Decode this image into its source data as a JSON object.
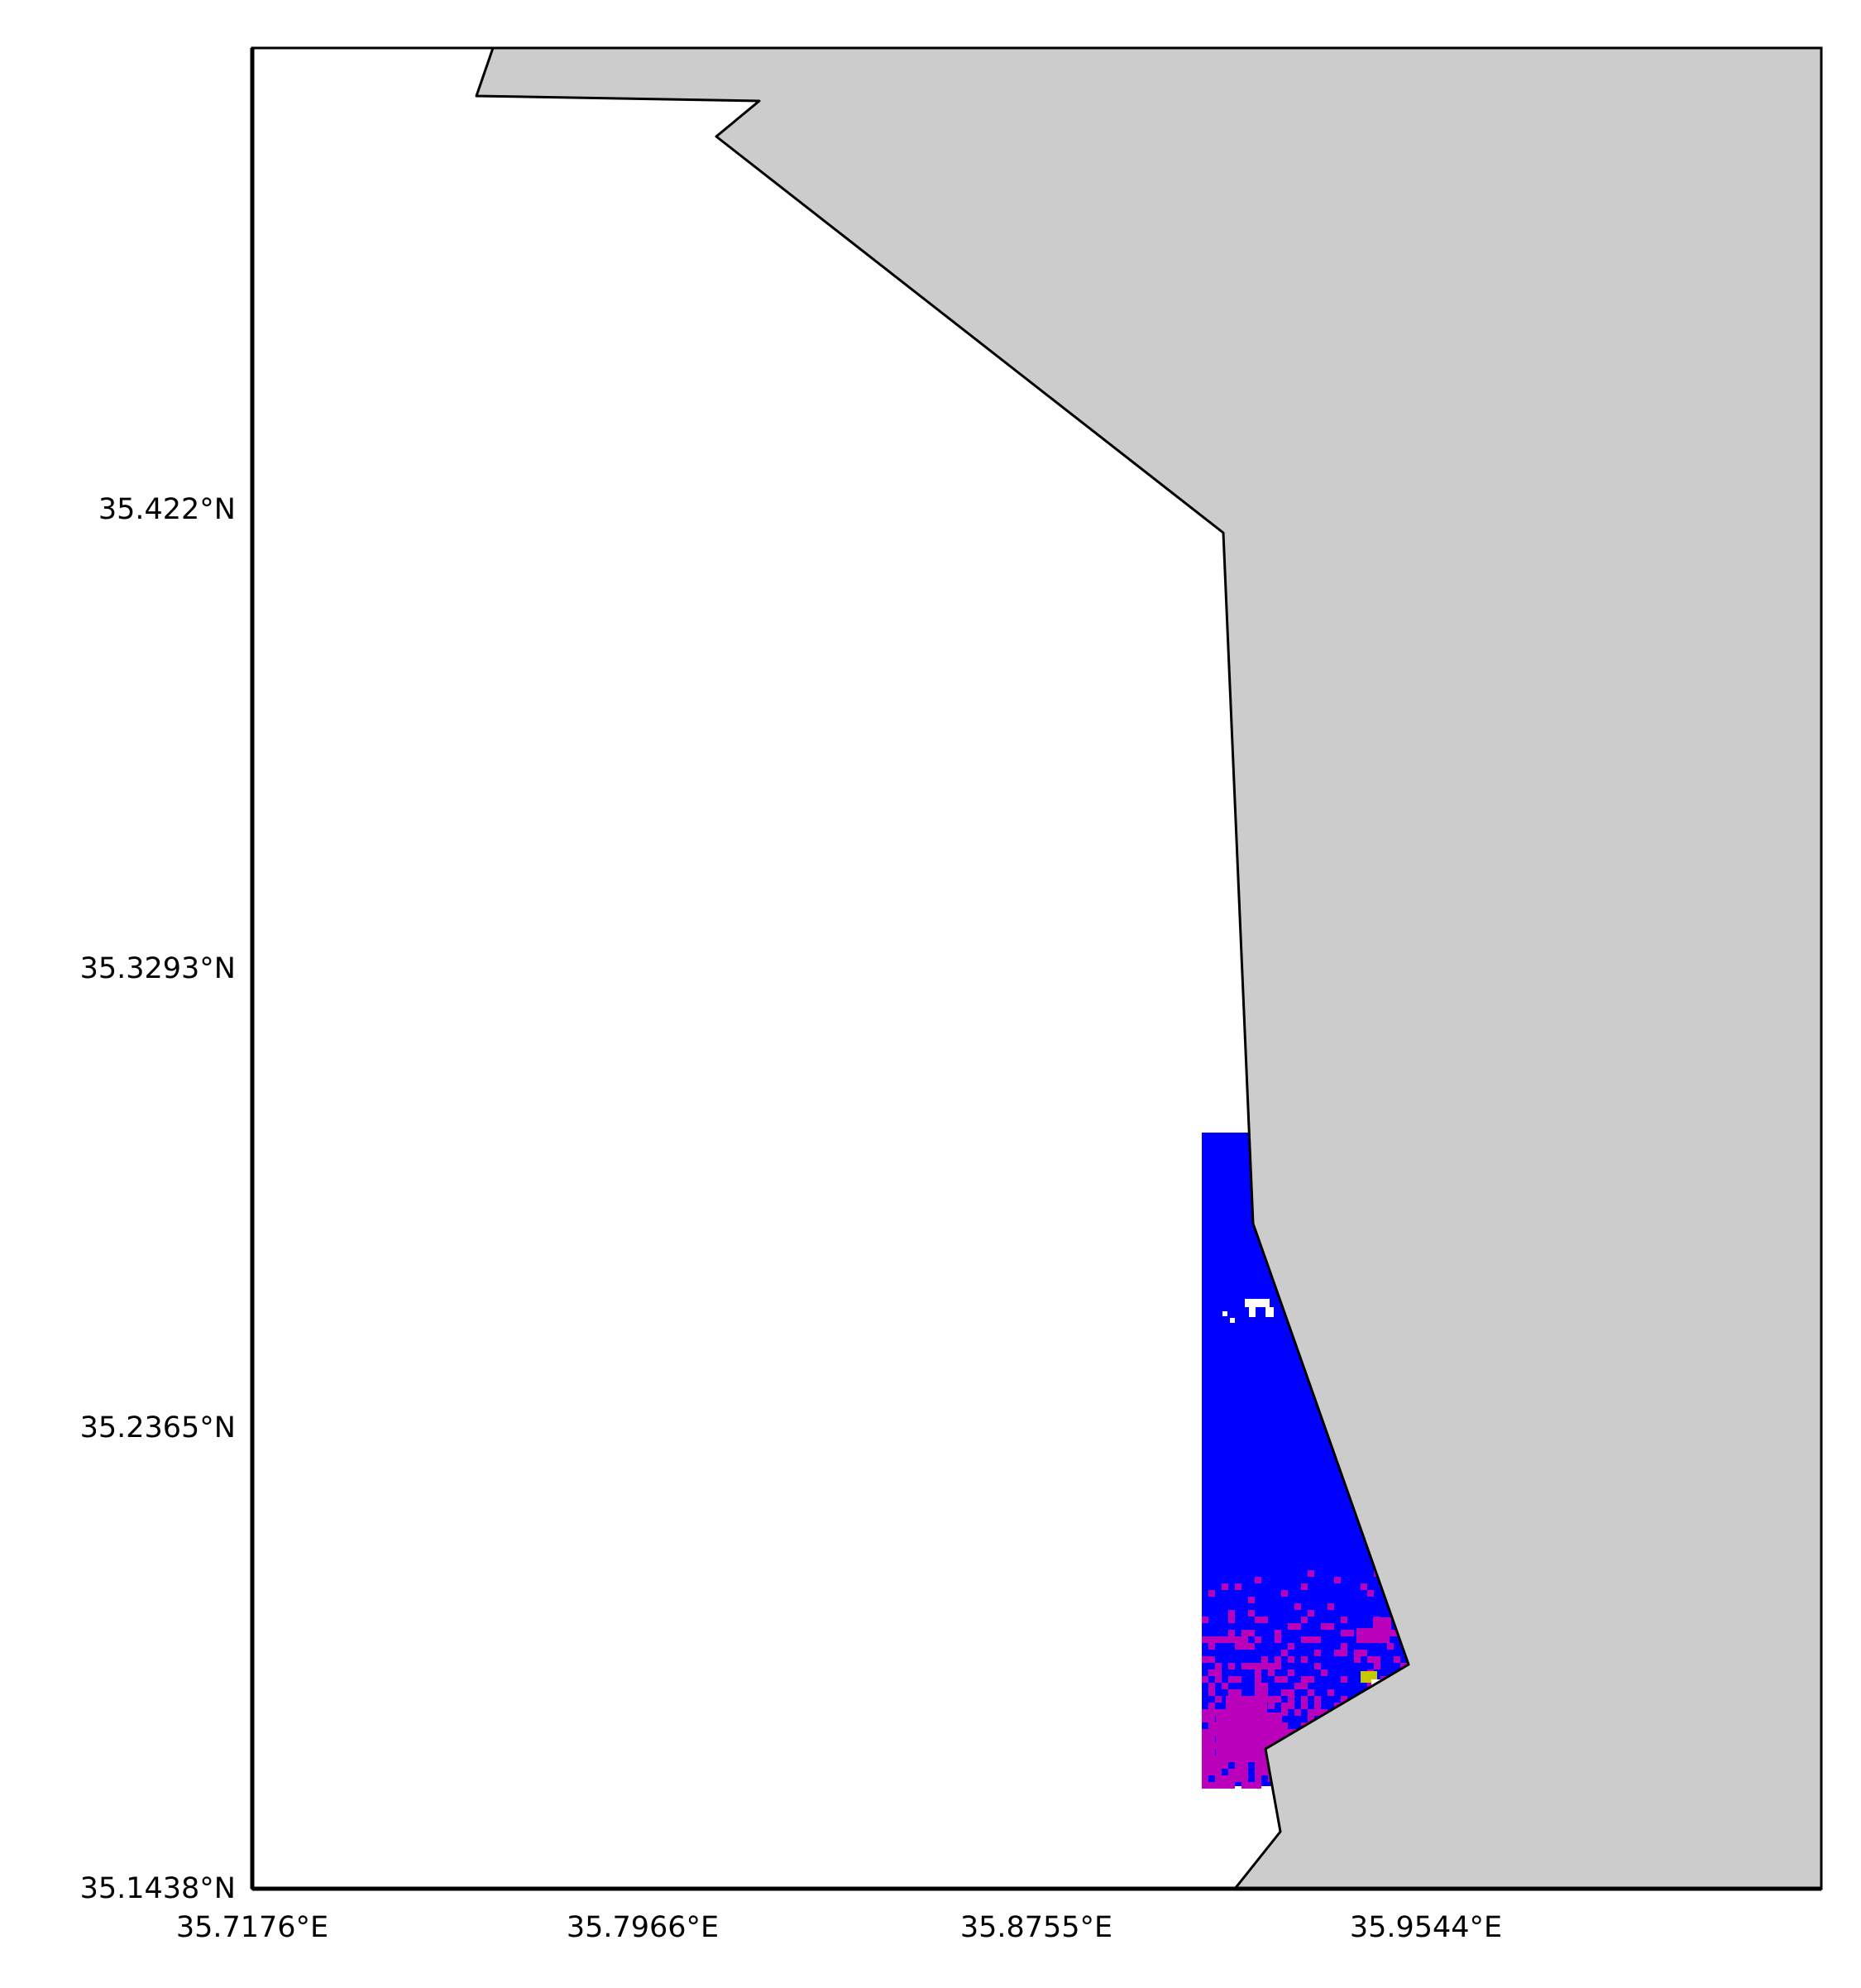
{
  "map": {
    "land_color": "#cccccc",
    "water_color": "#ffffff",
    "coastline_color": "#000000",
    "data_colors": {
      "primary": "#0000ff",
      "secondary": "#bb00bb",
      "highlight": "#c8c800"
    },
    "lat_labels": [
      "35.422°N",
      "35.3293°N",
      "35.2365°N",
      "35.1438°N"
    ],
    "lon_labels": [
      "35.7176°E",
      "35.7966°E",
      "35.8755°E",
      "35.9544°E"
    ]
  }
}
